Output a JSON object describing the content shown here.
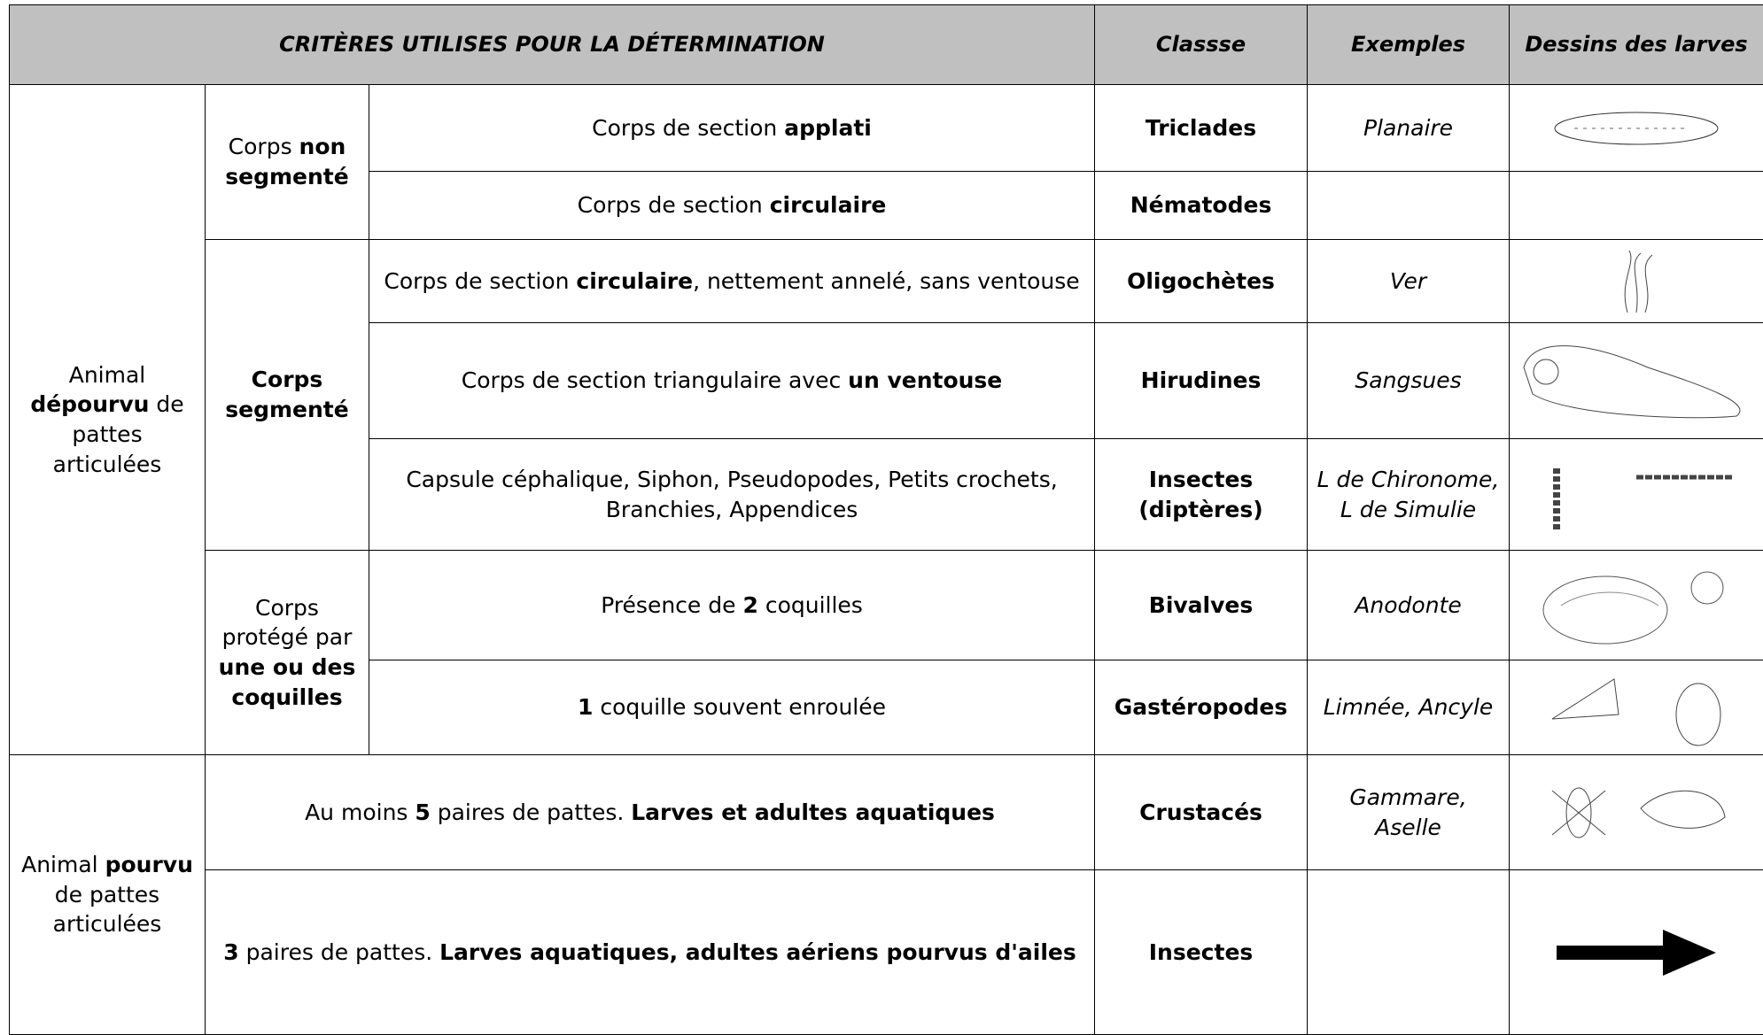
{
  "header": {
    "criteres": "CRITÈRES UTILISES POUR LA DÉTERMINATION",
    "classe": "Classse",
    "exemples": "Exemples",
    "dessins": "Dessins des larves"
  },
  "table": {
    "rows": [
      {
        "animal": [
          {
            "text": "Animal "
          },
          {
            "text": "dépourvu",
            "bold": true
          },
          {
            "text": " de pattes articulées"
          }
        ],
        "corps": [
          {
            "text": "Corps "
          },
          {
            "text": "non segmenté",
            "bold": true
          }
        ],
        "criteria": [
          {
            "text": "Corps de section "
          },
          {
            "text": "applati",
            "bold": true
          }
        ],
        "classe": [
          {
            "text": "Triclades"
          }
        ],
        "exemples": [
          {
            "text": "Planaire"
          }
        ]
      },
      {
        "criteria": [
          {
            "text": "Corps de section "
          },
          {
            "text": "circulaire",
            "bold": true
          }
        ],
        "classe": [
          {
            "text": "Nématodes"
          }
        ]
      },
      {
        "corps": [
          {
            "text": "Corps segmenté",
            "bold": true
          }
        ],
        "criteria": [
          {
            "text": "Corps de section "
          },
          {
            "text": "circulaire",
            "bold": true
          },
          {
            "text": ", nettement annelé, sans ventouse"
          }
        ],
        "classe": [
          {
            "text": "Oligochètes"
          }
        ],
        "exemples": [
          {
            "text": "Ver"
          }
        ]
      },
      {
        "criteria": [
          {
            "text": "Corps de section triangulaire avec "
          },
          {
            "text": "un ventouse",
            "bold": true
          }
        ],
        "classe": [
          {
            "text": "Hirudines"
          }
        ],
        "exemples": [
          {
            "text": "Sangsues"
          }
        ]
      },
      {
        "criteria": [
          {
            "text": "Capsule céphalique, Siphon, Pseudopodes, Petits crochets, Branchies, Appendices"
          }
        ],
        "classe": [
          {
            "text": "Insectes (diptères)"
          }
        ],
        "exemples": [
          {
            "text": "L de Chironome, L de Simulie"
          }
        ]
      },
      {
        "corps": [
          {
            "text": "Corps protégé par "
          },
          {
            "text": "une ou des coquilles",
            "bold": true
          }
        ],
        "criteria": [
          {
            "text": "Présence de "
          },
          {
            "text": "2",
            "bold": true
          },
          {
            "text": " coquilles"
          }
        ],
        "classe": [
          {
            "text": "Bivalves"
          }
        ],
        "exemples": [
          {
            "text": "Anodonte"
          }
        ]
      },
      {
        "criteria": [
          {
            "text": "1",
            "bold": true
          },
          {
            "text": " coquille souvent enroulée"
          }
        ],
        "classe": [
          {
            "text": "Gastéropodes"
          }
        ],
        "exemples": [
          {
            "text": "Limnée, Ancyle"
          }
        ]
      },
      {
        "animal": [
          {
            "text": "Animal "
          },
          {
            "text": "pourvu",
            "bold": true
          },
          {
            "text": " de pattes articulées"
          }
        ],
        "criteria": [
          {
            "text": "Au moins "
          },
          {
            "text": "5",
            "bold": true
          },
          {
            "text": " paires de pattes. "
          },
          {
            "text": "Larves et adultes aquatiques",
            "bold": true
          }
        ],
        "classe": [
          {
            "text": "Crustacés"
          }
        ],
        "exemples": [
          {
            "text": "Gammare, Aselle"
          }
        ]
      },
      {
        "criteria": [
          {
            "text": "3",
            "bold": true
          },
          {
            "text": " paires de pattes. "
          },
          {
            "text": "Larves aquatiques, adultes aériens pourvus d'ailes",
            "bold": true
          }
        ],
        "classe": [
          {
            "text": "Insectes"
          }
        ]
      }
    ]
  }
}
